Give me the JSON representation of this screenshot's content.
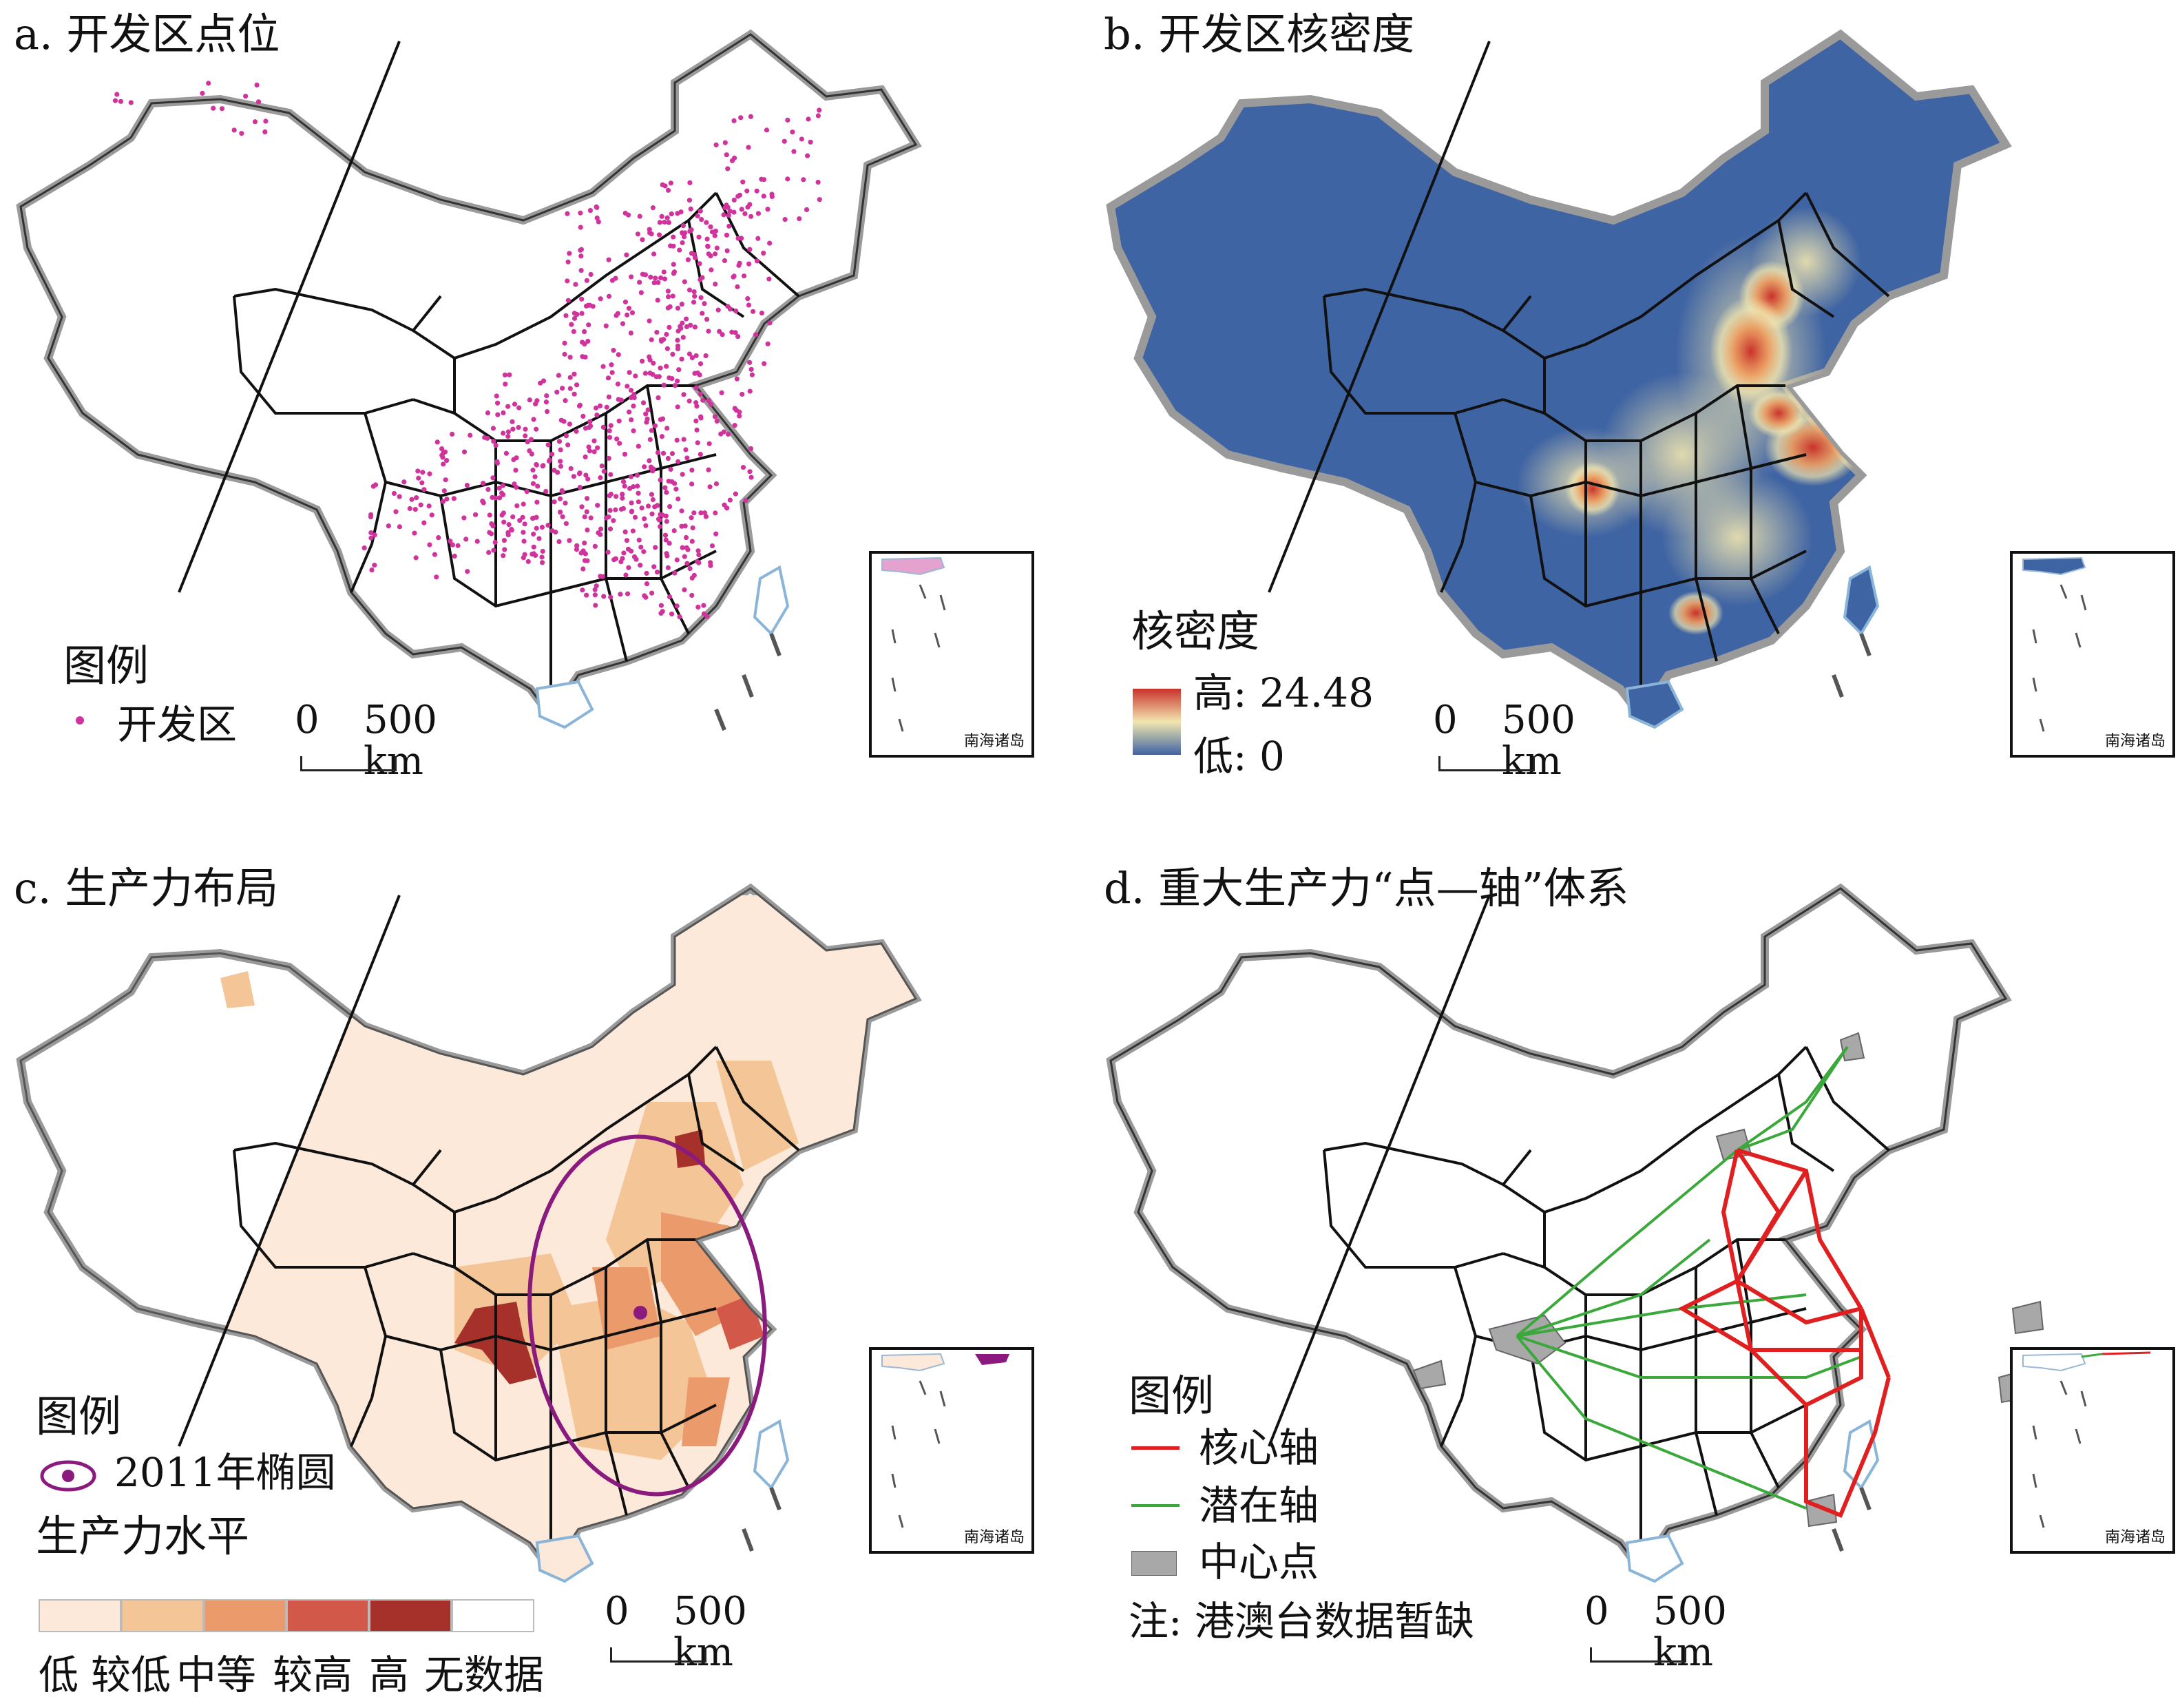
{
  "panels": {
    "a": {
      "title": "a. 开发区点位",
      "legend_title": "图例",
      "legend_item": "开发区",
      "point_color": "#d0339c"
    },
    "b": {
      "title": "b. 开发区核密度",
      "legend_title": "核密度",
      "high_label": "高: 24.48",
      "low_label": "低: 0",
      "color_high": "#c8322a",
      "color_mid": "#f2e6b0",
      "color_low": "#3f64a3"
    },
    "c": {
      "title": "c. 生产力布局",
      "legend_title": "图例",
      "ellipse_label": "2011年椭圆",
      "level_title": "生产力水平",
      "levels": [
        {
          "label": "低",
          "color": "#fde9d9"
        },
        {
          "label": "较低",
          "color": "#f4c596"
        },
        {
          "label": "中等",
          "color": "#eb9a6c"
        },
        {
          "label": "较高",
          "color": "#d2594a"
        },
        {
          "label": "高",
          "color": "#a6302a"
        },
        {
          "label": "无数据",
          "color": "#ffffff"
        }
      ],
      "ellipse_color": "#8b1a7e"
    },
    "d": {
      "title": "d. 重大生产力“点—轴”体系",
      "legend_title": "图例",
      "core_axis": "核心轴",
      "potential_axis": "潜在轴",
      "center_point": "中心点",
      "note": "注: 港澳台数据暂缺",
      "core_color": "#e02020",
      "potential_color": "#3aa83a",
      "center_color": "#a8a8a8"
    }
  },
  "scale_bar": {
    "zero": "0",
    "dist": "500 km"
  },
  "inset_label": "南海诸岛"
}
